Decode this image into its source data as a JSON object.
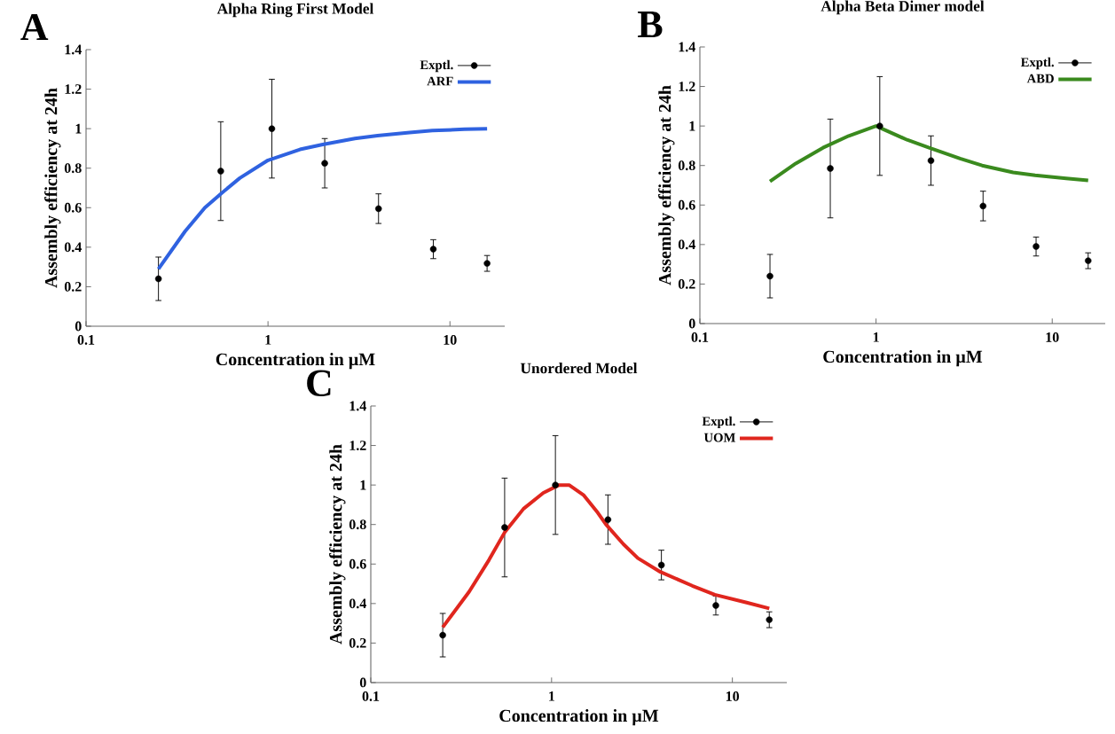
{
  "chart_data": [
    {
      "type": "line",
      "title": "Alpha Ring First Model",
      "xlabel": "Concentration in µM",
      "ylabel": "Assembly efficiency at 24h",
      "annotations": [
        "A"
      ],
      "log": "x",
      "xlim": [
        0.1,
        20
      ],
      "xticks": [
        0.1,
        1,
        10
      ],
      "ylim": [
        0,
        1.4
      ],
      "yticks": [
        0,
        0.2,
        0.4,
        0.6,
        0.8,
        1,
        1.2,
        1.4
      ],
      "grid": false,
      "legend": "top right",
      "series": [
        {
          "name": "Exptl.",
          "type": "scatter",
          "marker": "circle",
          "color": "#000000",
          "x": [
            0.25,
            0.55,
            1.05,
            2.05,
            4.05,
            8.1,
            16
          ],
          "values": [
            0.24,
            0.785,
            1.0,
            0.825,
            0.595,
            0.39,
            0.318
          ],
          "errors": [
            0.11,
            0.25,
            0.25,
            0.125,
            0.075,
            0.048,
            0.04
          ]
        },
        {
          "name": "ARF",
          "type": "line",
          "line_style": "solid",
          "color": "#2f62e0",
          "x": [
            0.25,
            0.35,
            0.45,
            0.55,
            0.7,
            1,
            1.5,
            2,
            3,
            4,
            6,
            8,
            12,
            16
          ],
          "values": [
            0.29,
            0.48,
            0.6,
            0.67,
            0.75,
            0.84,
            0.895,
            0.92,
            0.95,
            0.965,
            0.98,
            0.99,
            0.997,
            1.0
          ]
        }
      ]
    },
    {
      "type": "line",
      "title": "Alpha Beta Dimer model",
      "xlabel": "Concentration in µM",
      "ylabel": "Assembly efficiency at 24h",
      "annotations": [
        "B"
      ],
      "log": "x",
      "xlim": [
        0.1,
        20
      ],
      "xticks": [
        0.1,
        1,
        10
      ],
      "ylim": [
        0,
        1.4
      ],
      "yticks": [
        0,
        0.2,
        0.4,
        0.6,
        0.8,
        1,
        1.2,
        1.4
      ],
      "grid": false,
      "legend": "top right",
      "series": [
        {
          "name": "Exptl.",
          "type": "scatter",
          "marker": "circle",
          "color": "#000000",
          "x": [
            0.25,
            0.55,
            1.05,
            2.05,
            4.05,
            8.1,
            16
          ],
          "values": [
            0.24,
            0.785,
            1.0,
            0.825,
            0.595,
            0.39,
            0.318
          ],
          "errors": [
            0.11,
            0.25,
            0.25,
            0.125,
            0.075,
            0.048,
            0.04
          ]
        },
        {
          "name": "ABD",
          "type": "line",
          "line_style": "solid",
          "color": "#3a8a1e",
          "x": [
            0.25,
            0.35,
            0.5,
            0.7,
            1,
            1.5,
            2,
            3,
            4,
            6,
            8,
            12,
            16
          ],
          "values": [
            0.72,
            0.81,
            0.89,
            0.95,
            1.0,
            0.93,
            0.89,
            0.835,
            0.8,
            0.765,
            0.75,
            0.735,
            0.725
          ]
        }
      ]
    },
    {
      "type": "line",
      "title": "Unordered Model",
      "xlabel": "Concentration in µM",
      "ylabel": "Assembly efficiency at 24h",
      "annotations": [
        "C"
      ],
      "log": "x",
      "xlim": [
        0.1,
        20
      ],
      "xticks": [
        0.1,
        1,
        10
      ],
      "ylim": [
        0,
        1.4
      ],
      "yticks": [
        0,
        0.2,
        0.4,
        0.6,
        0.8,
        1,
        1.2,
        1.4
      ],
      "grid": false,
      "legend": "top right",
      "series": [
        {
          "name": "Exptl.",
          "type": "scatter",
          "marker": "circle",
          "color": "#000000",
          "x": [
            0.25,
            0.55,
            1.05,
            2.05,
            4.05,
            8.1,
            16
          ],
          "values": [
            0.24,
            0.785,
            1.0,
            0.825,
            0.595,
            0.39,
            0.318
          ],
          "errors": [
            0.11,
            0.25,
            0.25,
            0.125,
            0.075,
            0.048,
            0.04
          ]
        },
        {
          "name": "UOM",
          "type": "line",
          "line_style": "solid",
          "color": "#e0261e",
          "x": [
            0.25,
            0.35,
            0.45,
            0.55,
            0.7,
            0.9,
            1.1,
            1.25,
            1.5,
            1.8,
            2,
            2.5,
            3,
            4,
            6,
            8,
            12,
            16
          ],
          "values": [
            0.28,
            0.46,
            0.62,
            0.76,
            0.88,
            0.96,
            1.0,
            1.0,
            0.95,
            0.86,
            0.8,
            0.7,
            0.63,
            0.56,
            0.49,
            0.445,
            0.405,
            0.375
          ]
        }
      ]
    }
  ]
}
